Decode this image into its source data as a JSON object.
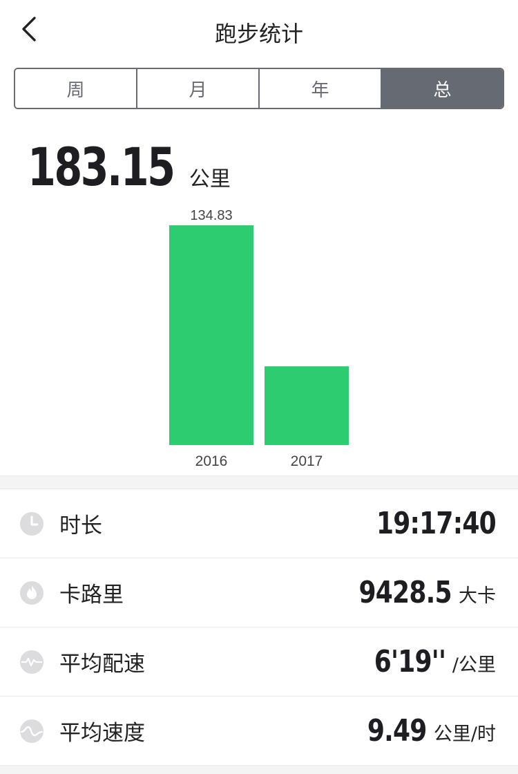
{
  "header": {
    "title": "跑步统计"
  },
  "segments": [
    {
      "label": "周",
      "active": false
    },
    {
      "label": "月",
      "active": false
    },
    {
      "label": "年",
      "active": false
    },
    {
      "label": "总",
      "active": true
    }
  ],
  "total": {
    "value": "183.15",
    "unit": "公里"
  },
  "chart_data": {
    "type": "bar",
    "categories": [
      "2016",
      "2017"
    ],
    "values": [
      134.83,
      48.32
    ],
    "data_labels": [
      "134.83",
      ""
    ],
    "color": "#2ecc71",
    "ylim": [
      0,
      134.83
    ]
  },
  "stats": [
    {
      "icon": "clock-icon",
      "label": "时长",
      "value": "19:17:40",
      "unit": ""
    },
    {
      "icon": "flame-icon",
      "label": "卡路里",
      "value": "9428.5",
      "unit": "大卡"
    },
    {
      "icon": "pace-icon",
      "label": "平均配速",
      "value": "6'19''",
      "unit": "/公里"
    },
    {
      "icon": "speed-icon",
      "label": "平均速度",
      "value": "9.49",
      "unit": "公里/时"
    }
  ],
  "colors": {
    "accent": "#2ecc71",
    "segment": "#666a72",
    "icon_bg": "#dcdcdf"
  }
}
